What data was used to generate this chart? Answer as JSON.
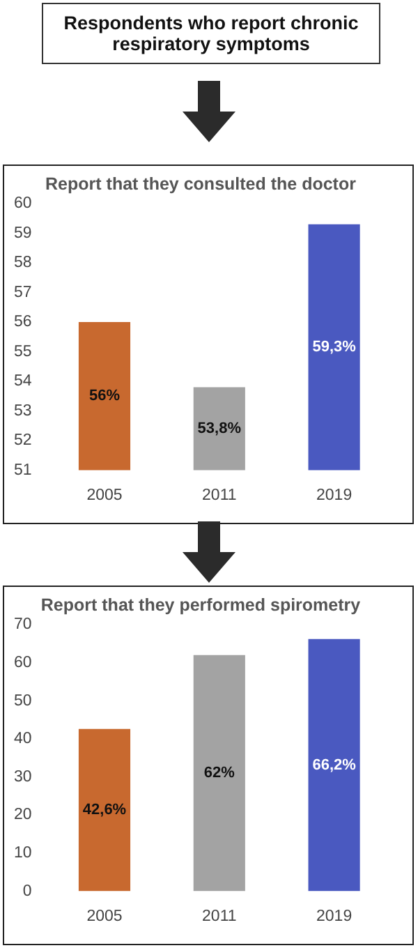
{
  "chart_data": [
    {
      "type": "other",
      "title": "Respondents who report chronic respiratory symptoms"
    },
    {
      "type": "bar",
      "title": "Report that they consulted the doctor",
      "categories": [
        "2005",
        "2011",
        "2019"
      ],
      "values": [
        56,
        53.8,
        59.3
      ],
      "colors": [
        "#c8692f",
        "#a3a3a3",
        "#4a59c0"
      ],
      "value_labels": [
        "56%",
        "53,8%",
        "59,3%"
      ],
      "ylim": [
        51,
        60
      ],
      "yticks": [
        51,
        52,
        53,
        54,
        55,
        56,
        57,
        58,
        59,
        60
      ],
      "grid": false,
      "legend": false
    },
    {
      "type": "bar",
      "title": "Report that they performed spirometry",
      "categories": [
        "2005",
        "2011",
        "2019"
      ],
      "values": [
        42.6,
        62,
        66.2
      ],
      "colors": [
        "#c8692f",
        "#a3a3a3",
        "#4a59c0"
      ],
      "value_labels": [
        "42,6%",
        "62%",
        "66,2%"
      ],
      "ylim": [
        0,
        70
      ],
      "yticks": [
        0,
        10,
        20,
        30,
        40,
        50,
        60,
        70
      ],
      "grid": false,
      "legend": false
    }
  ]
}
